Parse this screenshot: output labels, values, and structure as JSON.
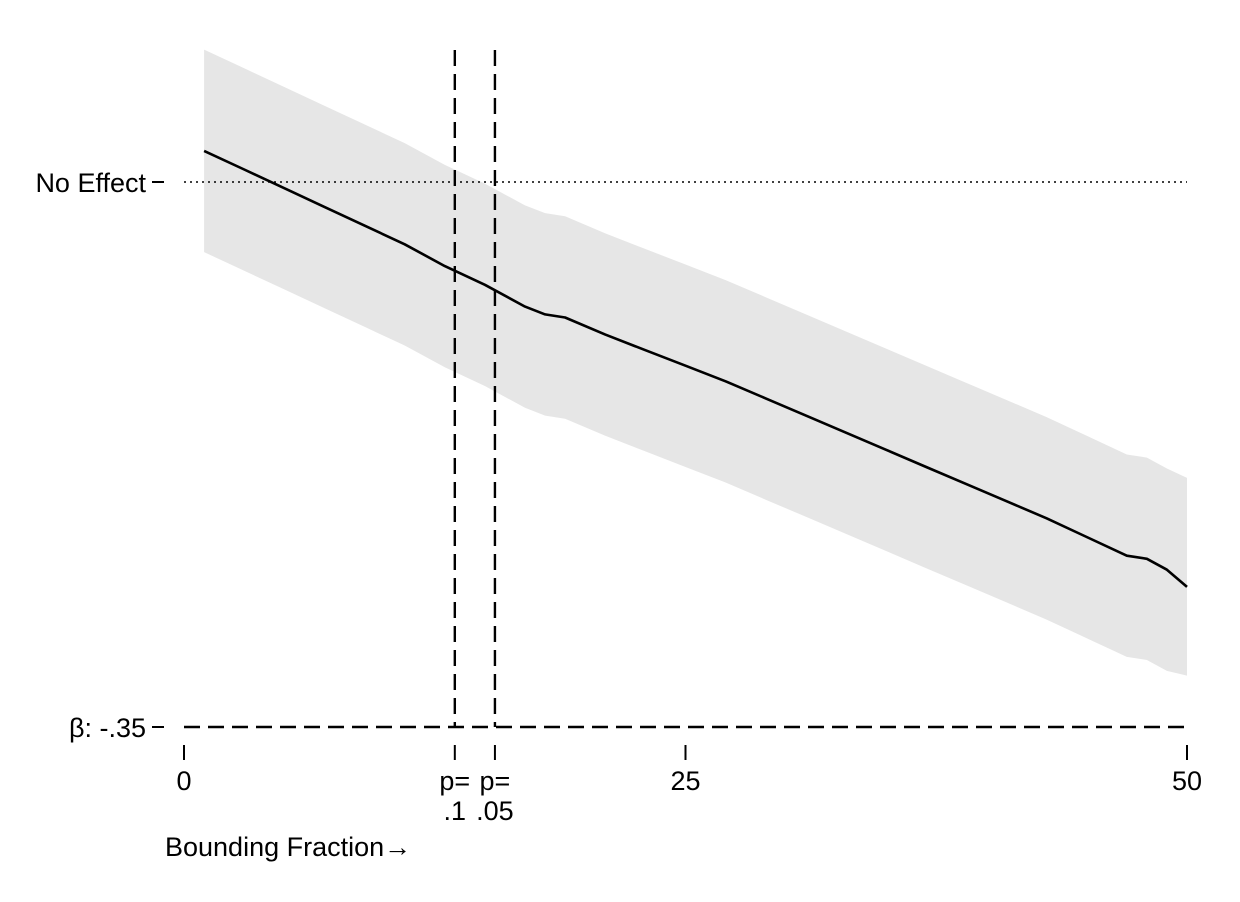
{
  "chart_data": {
    "type": "line",
    "title": "",
    "xlabel": "Bounding Fraction→",
    "ylabel": "",
    "xlim": [
      0,
      50
    ],
    "ylim": [
      -0.35,
      0.08
    ],
    "grid": false,
    "legend": "none",
    "x_ticks": [
      {
        "value": 0,
        "label": "0"
      },
      {
        "value": 25,
        "label": "25"
      },
      {
        "value": 50,
        "label": "50"
      }
    ],
    "pvalue_markers": [
      {
        "x": 13.5,
        "line1": "p=",
        "line2": ".1"
      },
      {
        "x": 15.5,
        "line1": "p=",
        "line2": ".05"
      }
    ],
    "y_ticks": [
      {
        "value": 0,
        "label": "No Effect"
      },
      {
        "value": -0.35,
        "label": "β: -.35"
      }
    ],
    "reference_lines": [
      {
        "axis": "y",
        "value": 0,
        "style": "dotted"
      },
      {
        "axis": "y",
        "value": -0.35,
        "style": "dashed"
      }
    ],
    "series": [
      {
        "x": [
          1,
          3,
          5,
          7,
          9,
          11,
          13,
          15,
          17,
          18,
          19,
          21,
          23,
          25,
          27,
          29,
          31,
          33,
          35,
          37,
          39,
          41,
          43,
          45,
          47,
          48,
          49,
          50
        ],
        "estimate": [
          0.02,
          0.008,
          -0.004,
          -0.016,
          -0.028,
          -0.04,
          -0.054,
          -0.066,
          -0.08,
          -0.085,
          -0.087,
          -0.098,
          -0.108,
          -0.118,
          -0.128,
          -0.139,
          -0.15,
          -0.161,
          -0.172,
          -0.183,
          -0.194,
          -0.205,
          -0.216,
          -0.228,
          -0.24,
          -0.242,
          -0.249,
          -0.26
        ],
        "lower": [
          -0.045,
          -0.057,
          -0.069,
          -0.081,
          -0.093,
          -0.105,
          -0.119,
          -0.131,
          -0.145,
          -0.15,
          -0.152,
          -0.163,
          -0.173,
          -0.183,
          -0.193,
          -0.204,
          -0.215,
          -0.226,
          -0.237,
          -0.248,
          -0.259,
          -0.27,
          -0.281,
          -0.293,
          -0.305,
          -0.307,
          -0.314,
          -0.317
        ],
        "upper": [
          0.085,
          0.073,
          0.061,
          0.049,
          0.037,
          0.025,
          0.011,
          -0.001,
          -0.015,
          -0.02,
          -0.022,
          -0.033,
          -0.043,
          -0.053,
          -0.063,
          -0.074,
          -0.085,
          -0.096,
          -0.107,
          -0.118,
          -0.129,
          -0.14,
          -0.151,
          -0.163,
          -0.175,
          -0.177,
          -0.184,
          -0.19
        ]
      }
    ],
    "colors": {
      "band": "#e6e6e6",
      "line": "#000000"
    }
  }
}
